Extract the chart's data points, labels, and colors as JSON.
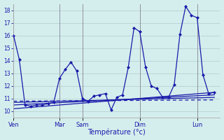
{
  "xlabel": "Température (°c)",
  "bg_color": "#d4eeed",
  "line_color": "#1a1aaa",
  "grid_color": "#b0cccc",
  "ylim": [
    9.5,
    18.5
  ],
  "yticks": [
    10,
    11,
    12,
    13,
    14,
    15,
    16,
    17,
    18
  ],
  "day_labels": [
    "Ven",
    "Mar",
    "Sam",
    "Dim",
    "Lun"
  ],
  "day_x": [
    0,
    8,
    12,
    22,
    32
  ],
  "xlim": [
    0,
    36
  ],
  "series_main": {
    "x": [
      0,
      1,
      2,
      3,
      4,
      5,
      6,
      7,
      8,
      9,
      10,
      11,
      12,
      13,
      14,
      15,
      16,
      17,
      18,
      19,
      20,
      21,
      22,
      23,
      24,
      25,
      26,
      27,
      28,
      29,
      30,
      31,
      32,
      33,
      34,
      35
    ],
    "y": [
      16,
      14.1,
      10.5,
      10.4,
      10.5,
      10.5,
      10.6,
      10.7,
      12.6,
      13.3,
      13.9,
      13.2,
      11.0,
      10.8,
      11.2,
      11.3,
      11.4,
      10.1,
      11.1,
      11.3,
      13.5,
      16.6,
      16.3,
      13.5,
      12.0,
      11.8,
      11.1,
      11.1,
      12.1,
      16.1,
      18.3,
      17.6,
      17.4,
      12.9,
      11.4,
      11.5
    ]
  },
  "trend1": {
    "x": [
      0,
      35
    ],
    "y": [
      10.2,
      11.5
    ]
  },
  "trend2": {
    "x": [
      0,
      35
    ],
    "y": [
      10.5,
      11.3
    ]
  },
  "trend3": {
    "x": [
      0,
      35
    ],
    "y": [
      10.7,
      11.1
    ]
  },
  "dashed_line": {
    "x": [
      0,
      35
    ],
    "y": [
      10.8,
      10.9
    ]
  }
}
